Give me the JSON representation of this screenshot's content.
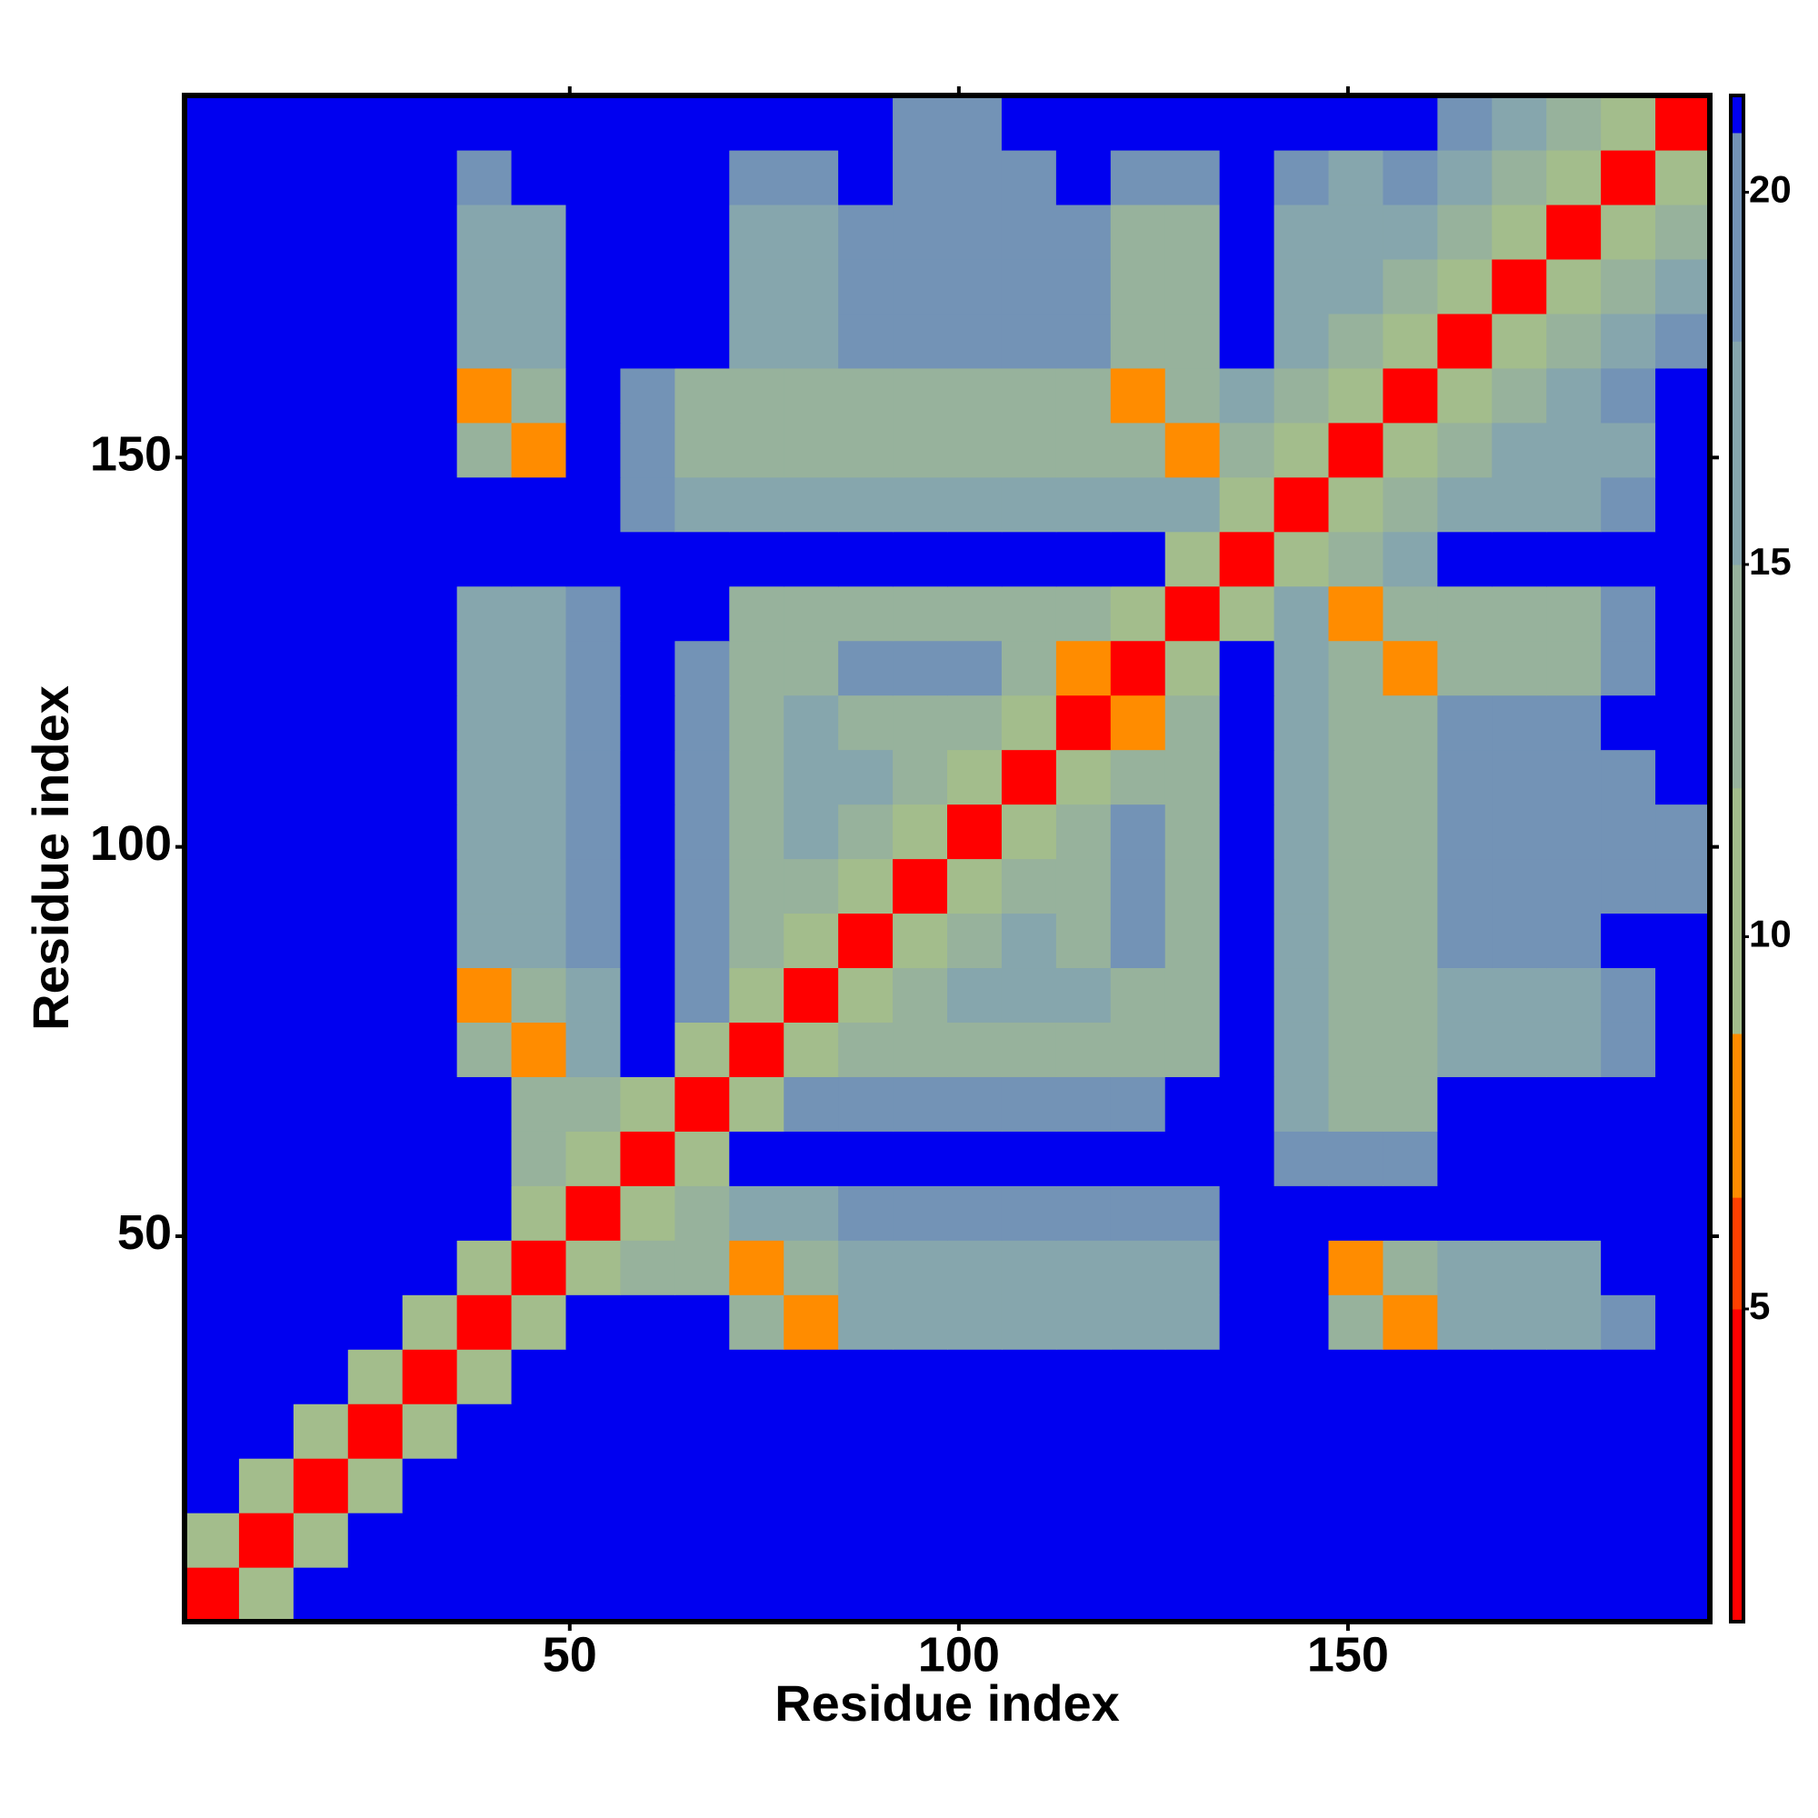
{
  "chart_data": {
    "type": "heatmap",
    "xlabel": "Residue index",
    "ylabel": "Residue index",
    "x": [
      4,
      11,
      18,
      25,
      32,
      39,
      46,
      53,
      60,
      67,
      74,
      81,
      88,
      95,
      102,
      109,
      116,
      123,
      130,
      137,
      144,
      151,
      158,
      165,
      172,
      179,
      186,
      193
    ],
    "y": [
      4,
      11,
      18,
      25,
      32,
      39,
      46,
      53,
      60,
      67,
      74,
      81,
      88,
      95,
      102,
      109,
      116,
      123,
      130,
      137,
      144,
      151,
      158,
      165,
      172,
      179,
      186,
      193
    ],
    "xlim": [
      0.5,
      196.5
    ],
    "ylim": [
      0.5,
      196.5
    ],
    "xticks": [
      50,
      100,
      150
    ],
    "yticks": [
      50,
      100,
      150
    ],
    "zlim": [
      0.8,
      21.3
    ],
    "zticks": [
      5,
      10,
      15,
      20
    ],
    "colorscale": [
      {
        "value": 0.8,
        "color": "#ff0000"
      },
      {
        "value": 5,
        "color": "#ff4000"
      },
      {
        "value": 6.5,
        "color": "#ff8c00"
      },
      {
        "value": 8.7,
        "color": "#a3bd8c"
      },
      {
        "value": 12,
        "color": "#97b29c"
      },
      {
        "value": 15,
        "color": "#86a6ad"
      },
      {
        "value": 18,
        "color": "#7393b6"
      },
      {
        "value": 20.8,
        "color": "#0000f0"
      }
    ],
    "values": [
      [
        3,
        11,
        21,
        21,
        21,
        21,
        21,
        21,
        21,
        21,
        21,
        21,
        21,
        21,
        21,
        21,
        21,
        21,
        21,
        21,
        21,
        21,
        21,
        21,
        21,
        21,
        21,
        21
      ],
      [
        11,
        3,
        11,
        21,
        21,
        21,
        21,
        21,
        21,
        21,
        21,
        21,
        21,
        21,
        21,
        21,
        21,
        21,
        21,
        21,
        21,
        21,
        21,
        21,
        21,
        21,
        21,
        21
      ],
      [
        21,
        11,
        3,
        11,
        21,
        21,
        21,
        21,
        21,
        21,
        21,
        21,
        21,
        21,
        21,
        21,
        21,
        21,
        21,
        21,
        21,
        21,
        21,
        21,
        21,
        21,
        21,
        21
      ],
      [
        21,
        21,
        11,
        3,
        11,
        21,
        21,
        21,
        21,
        21,
        21,
        21,
        21,
        21,
        21,
        21,
        21,
        21,
        21,
        21,
        21,
        21,
        21,
        21,
        21,
        21,
        21,
        21
      ],
      [
        21,
        21,
        21,
        11,
        3,
        10,
        21,
        21,
        21,
        21,
        21,
        21,
        21,
        21,
        21,
        21,
        21,
        21,
        21,
        21,
        21,
        21,
        21,
        21,
        21,
        21,
        21,
        21
      ],
      [
        21,
        21,
        21,
        21,
        10,
        3,
        10,
        21,
        21,
        21,
        12,
        7,
        15,
        15,
        15,
        15,
        15,
        15,
        15,
        21,
        21,
        13,
        7,
        16,
        16,
        17,
        19,
        21
      ],
      [
        21,
        21,
        21,
        21,
        21,
        10,
        3,
        10,
        12,
        13,
        7,
        13,
        15,
        15,
        15,
        15,
        15,
        15,
        15,
        21,
        21,
        7,
        13,
        16,
        17,
        17,
        21,
        21
      ],
      [
        21,
        21,
        21,
        21,
        21,
        21,
        10,
        3,
        10,
        12,
        16,
        17,
        19,
        19,
        19,
        19,
        19,
        19,
        19,
        21,
        21,
        21,
        21,
        21,
        21,
        21,
        21,
        21
      ],
      [
        21,
        21,
        21,
        21,
        21,
        21,
        12,
        10,
        3,
        10,
        21,
        21,
        21,
        21,
        21,
        21,
        21,
        21,
        21,
        21,
        18,
        18,
        18,
        21,
        21,
        21,
        21,
        21
      ],
      [
        21,
        21,
        21,
        21,
        21,
        21,
        13,
        12,
        10,
        3,
        10,
        19,
        19,
        19,
        19,
        19,
        19,
        19,
        21,
        21,
        15,
        13,
        14,
        21,
        21,
        21,
        21,
        21
      ],
      [
        21,
        21,
        21,
        21,
        21,
        12,
        7,
        16,
        21,
        10,
        3,
        10,
        13,
        14,
        14,
        14,
        14,
        14,
        12,
        21,
        15,
        13,
        14,
        15,
        15,
        15,
        19,
        21
      ],
      [
        21,
        21,
        21,
        21,
        21,
        7,
        13,
        17,
        21,
        19,
        10,
        3,
        10,
        13,
        16,
        16,
        15,
        12,
        14,
        21,
        15,
        13,
        14,
        15,
        15,
        15,
        19,
        21
      ],
      [
        21,
        21,
        21,
        21,
        21,
        15,
        15,
        19,
        21,
        19,
        13,
        10,
        3,
        10,
        13,
        17,
        12,
        18,
        14,
        21,
        15,
        13,
        14,
        18,
        18,
        18,
        21,
        21
      ],
      [
        21,
        21,
        21,
        21,
        21,
        15,
        15,
        19,
        21,
        19,
        14,
        13,
        10,
        3,
        10,
        12,
        14,
        18,
        14,
        21,
        15,
        13,
        14,
        18,
        18,
        18,
        18,
        19
      ],
      [
        21,
        21,
        21,
        21,
        21,
        15,
        15,
        19,
        21,
        19,
        14,
        16,
        13,
        10,
        3,
        10,
        13,
        18,
        14,
        21,
        15,
        13,
        14,
        18,
        18,
        18,
        18,
        19
      ],
      [
        21,
        21,
        21,
        21,
        21,
        15,
        15,
        19,
        21,
        19,
        14,
        16,
        17,
        12,
        10,
        3,
        10,
        13,
        14,
        21,
        15,
        13,
        14,
        18,
        18,
        18,
        18,
        21
      ],
      [
        21,
        21,
        21,
        21,
        21,
        15,
        15,
        19,
        21,
        19,
        14,
        15,
        12,
        14,
        13,
        10,
        3,
        7,
        13,
        21,
        15,
        13,
        14,
        18,
        18,
        18,
        21,
        21
      ],
      [
        21,
        21,
        21,
        21,
        21,
        15,
        15,
        19,
        21,
        19,
        14,
        12,
        18,
        18,
        18,
        13,
        7,
        3,
        10,
        21,
        15,
        12,
        7,
        14,
        14,
        14,
        18,
        21
      ],
      [
        21,
        21,
        21,
        21,
        21,
        15,
        15,
        19,
        21,
        21,
        12,
        14,
        14,
        14,
        14,
        14,
        13,
        10,
        3,
        10,
        15,
        7,
        12,
        14,
        14,
        14,
        18,
        21
      ],
      [
        21,
        21,
        21,
        21,
        21,
        21,
        21,
        21,
        21,
        21,
        21,
        21,
        21,
        21,
        21,
        21,
        21,
        21,
        10,
        3,
        9,
        14,
        15,
        21,
        21,
        21,
        21,
        21
      ],
      [
        21,
        21,
        21,
        21,
        21,
        21,
        21,
        21,
        18,
        15,
        15,
        15,
        15,
        15,
        15,
        15,
        15,
        15,
        15,
        9,
        3,
        9,
        14,
        17,
        16,
        17,
        18,
        21
      ],
      [
        21,
        21,
        21,
        21,
        21,
        13,
        7,
        21,
        18,
        13,
        13,
        13,
        13,
        13,
        13,
        13,
        13,
        12,
        7,
        14,
        9,
        3,
        9,
        14,
        15,
        16,
        17,
        21
      ],
      [
        21,
        21,
        21,
        21,
        21,
        7,
        13,
        21,
        18,
        14,
        14,
        14,
        14,
        14,
        14,
        14,
        14,
        7,
        12,
        15,
        14,
        9,
        3,
        9,
        14,
        17,
        18,
        21
      ],
      [
        21,
        21,
        21,
        21,
        21,
        16,
        16,
        21,
        21,
        21,
        15,
        15,
        18,
        18,
        18,
        18,
        18,
        14,
        14,
        21,
        17,
        14,
        9,
        3,
        9,
        14,
        17,
        19
      ],
      [
        21,
        21,
        21,
        21,
        21,
        16,
        17,
        21,
        21,
        21,
        15,
        15,
        18,
        18,
        18,
        18,
        18,
        14,
        14,
        21,
        16,
        15,
        14,
        9,
        3,
        9,
        14,
        17
      ],
      [
        21,
        21,
        21,
        21,
        21,
        17,
        17,
        21,
        21,
        21,
        15,
        15,
        18,
        18,
        18,
        18,
        18,
        14,
        14,
        21,
        17,
        16,
        17,
        14,
        9,
        3,
        9,
        14
      ],
      [
        21,
        21,
        21,
        21,
        21,
        19,
        21,
        21,
        21,
        21,
        19,
        19,
        21,
        18,
        18,
        18,
        21,
        18,
        18,
        21,
        18,
        17,
        18,
        17,
        14,
        9,
        3,
        9
      ],
      [
        21,
        21,
        21,
        21,
        21,
        21,
        21,
        21,
        21,
        21,
        21,
        21,
        21,
        19,
        19,
        21,
        21,
        21,
        21,
        21,
        21,
        21,
        21,
        19,
        17,
        14,
        9,
        3
      ]
    ]
  }
}
